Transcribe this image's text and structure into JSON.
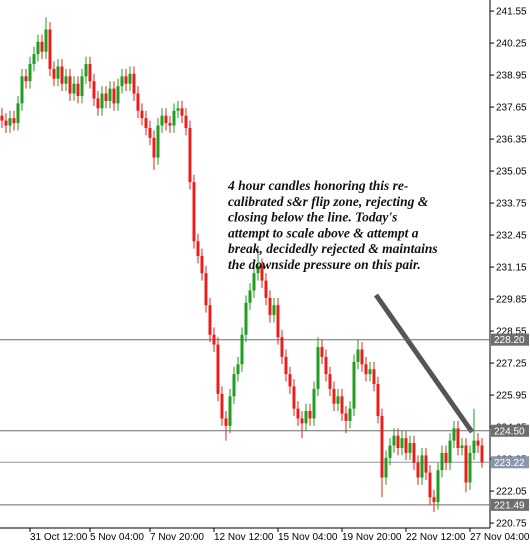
{
  "chart_data": {
    "type": "candlestick",
    "categories": [
      null,
      null,
      null,
      null,
      null,
      null,
      null,
      "31 Oct 12:00",
      null,
      null,
      null,
      null,
      null,
      null,
      null,
      null,
      null,
      null,
      null,
      null,
      null,
      null,
      "5 Nov 04:00",
      null,
      null,
      null,
      null,
      null,
      null,
      null,
      null,
      null,
      null,
      null,
      null,
      null,
      null,
      "7 Nov 20:00",
      null,
      null,
      null,
      null,
      null,
      null,
      null,
      null,
      null,
      null,
      null,
      null,
      null,
      null,
      null,
      "12 Nov 12:00",
      null,
      null,
      null,
      null,
      null,
      null,
      null,
      null,
      null,
      null,
      null,
      null,
      null,
      null,
      null,
      "15 Nov 04:00",
      null,
      null,
      null,
      null,
      null,
      null,
      null,
      null,
      null,
      null,
      null,
      null,
      null,
      null,
      null,
      "19 Nov 20:00",
      null,
      null,
      null,
      null,
      null,
      null,
      null,
      null,
      null,
      null,
      null,
      null,
      null,
      null,
      null,
      "22 Nov 12:00",
      null,
      null,
      null,
      null,
      null,
      null,
      null,
      null,
      null,
      null,
      null,
      null,
      null,
      null,
      null,
      "27 Nov 04:00",
      null,
      null,
      null
    ],
    "ohlc": [
      [
        237.3,
        237.6,
        236.8,
        237.1
      ],
      [
        237.1,
        237.4,
        236.6,
        236.9
      ],
      [
        236.9,
        237.5,
        236.6,
        237.2
      ],
      [
        237.2,
        237.5,
        236.7,
        237.0
      ],
      [
        237.0,
        238.1,
        236.7,
        237.8
      ],
      [
        237.8,
        239.2,
        237.5,
        238.9
      ],
      [
        238.9,
        239.2,
        238.4,
        238.7
      ],
      [
        238.7,
        239.7,
        238.4,
        239.4
      ],
      [
        239.4,
        240.1,
        239.1,
        239.8
      ],
      [
        239.8,
        240.6,
        239.5,
        240.3
      ],
      [
        240.3,
        240.6,
        239.6,
        239.9
      ],
      [
        239.9,
        241.3,
        239.6,
        240.8
      ],
      [
        240.8,
        241.1,
        238.9,
        239.2
      ],
      [
        239.2,
        239.5,
        238.5,
        238.8
      ],
      [
        238.8,
        239.6,
        238.5,
        239.3
      ],
      [
        239.3,
        239.6,
        238.3,
        238.6
      ],
      [
        238.6,
        239.2,
        238.3,
        238.9
      ],
      [
        238.9,
        239.2,
        237.9,
        238.2
      ],
      [
        238.2,
        238.9,
        237.9,
        238.6
      ],
      [
        238.6,
        238.9,
        237.8,
        238.1
      ],
      [
        238.1,
        239.2,
        237.8,
        238.9
      ],
      [
        238.9,
        239.7,
        238.6,
        239.4
      ],
      [
        239.4,
        239.7,
        238.4,
        238.7
      ],
      [
        238.7,
        239.0,
        237.7,
        238.0
      ],
      [
        238.0,
        238.3,
        237.3,
        237.6
      ],
      [
        237.6,
        238.5,
        237.3,
        238.2
      ],
      [
        238.2,
        238.5,
        237.6,
        237.9
      ],
      [
        237.9,
        238.7,
        237.6,
        238.4
      ],
      [
        238.4,
        238.7,
        237.5,
        237.8
      ],
      [
        237.8,
        238.8,
        237.5,
        238.5
      ],
      [
        238.5,
        239.2,
        238.2,
        238.9
      ],
      [
        238.9,
        239.2,
        238.3,
        238.6
      ],
      [
        238.6,
        239.3,
        238.3,
        239.0
      ],
      [
        239.0,
        239.3,
        237.9,
        238.2
      ],
      [
        238.2,
        238.5,
        237.2,
        237.5
      ],
      [
        237.5,
        237.8,
        236.9,
        237.2
      ],
      [
        237.2,
        237.5,
        236.5,
        236.8
      ],
      [
        236.8,
        237.1,
        236.1,
        236.4
      ],
      [
        236.4,
        236.7,
        235.1,
        235.6
      ],
      [
        235.6,
        237.2,
        235.3,
        236.9
      ],
      [
        236.9,
        237.6,
        236.6,
        237.3
      ],
      [
        237.3,
        237.6,
        236.7,
        237.0
      ],
      [
        237.0,
        237.3,
        236.6,
        236.9
      ],
      [
        236.9,
        237.8,
        236.6,
        237.5
      ],
      [
        237.5,
        237.9,
        237.2,
        237.6
      ],
      [
        237.6,
        237.9,
        237.0,
        237.3
      ],
      [
        237.3,
        237.6,
        236.5,
        236.8
      ],
      [
        236.8,
        237.1,
        234.3,
        234.6
      ],
      [
        234.6,
        234.9,
        231.9,
        232.2
      ],
      [
        232.2,
        232.5,
        231.3,
        231.6
      ],
      [
        231.6,
        231.9,
        230.6,
        230.9
      ],
      [
        230.9,
        231.2,
        229.3,
        229.6
      ],
      [
        229.6,
        229.9,
        228.1,
        228.4
      ],
      [
        228.4,
        228.7,
        227.7,
        228.0
      ],
      [
        228.0,
        228.3,
        225.7,
        226.0
      ],
      [
        226.0,
        226.3,
        224.7,
        225.0
      ],
      [
        225.0,
        225.3,
        224.1,
        224.7
      ],
      [
        224.7,
        226.2,
        224.4,
        225.9
      ],
      [
        225.9,
        227.1,
        225.6,
        226.8
      ],
      [
        226.8,
        227.5,
        226.5,
        227.2
      ],
      [
        227.2,
        228.7,
        226.9,
        228.4
      ],
      [
        228.4,
        230.0,
        228.1,
        229.7
      ],
      [
        229.7,
        230.5,
        229.4,
        230.2
      ],
      [
        230.2,
        231.2,
        229.9,
        230.9
      ],
      [
        230.9,
        231.9,
        230.6,
        231.2
      ],
      [
        231.2,
        231.5,
        230.3,
        230.6
      ],
      [
        230.6,
        230.9,
        229.6,
        229.9
      ],
      [
        229.9,
        230.2,
        228.9,
        229.2
      ],
      [
        229.2,
        229.9,
        228.9,
        229.6
      ],
      [
        229.6,
        229.9,
        228.0,
        228.3
      ],
      [
        228.3,
        228.6,
        227.2,
        227.5
      ],
      [
        227.5,
        227.8,
        226.5,
        226.8
      ],
      [
        226.8,
        227.1,
        226.0,
        226.3
      ],
      [
        226.3,
        226.6,
        225.1,
        225.4
      ],
      [
        225.4,
        225.7,
        224.7,
        225.0
      ],
      [
        225.0,
        225.3,
        224.2,
        224.8
      ],
      [
        224.8,
        225.6,
        224.5,
        225.3
      ],
      [
        225.3,
        225.6,
        224.7,
        225.0
      ],
      [
        225.0,
        226.5,
        224.7,
        226.2
      ],
      [
        226.2,
        228.3,
        225.9,
        227.9
      ],
      [
        227.9,
        228.2,
        227.2,
        227.5
      ],
      [
        227.5,
        227.8,
        226.5,
        226.8
      ],
      [
        226.8,
        227.1,
        225.9,
        226.2
      ],
      [
        226.2,
        226.5,
        225.3,
        225.6
      ],
      [
        225.6,
        226.2,
        225.3,
        225.9
      ],
      [
        225.9,
        226.2,
        224.9,
        225.2
      ],
      [
        225.2,
        225.5,
        224.4,
        224.9
      ],
      [
        224.9,
        225.7,
        224.6,
        225.4
      ],
      [
        225.4,
        227.6,
        225.1,
        227.3
      ],
      [
        227.3,
        228.2,
        227.0,
        227.8
      ],
      [
        227.8,
        228.1,
        226.9,
        227.2
      ],
      [
        227.2,
        227.5,
        226.5,
        226.8
      ],
      [
        226.8,
        227.3,
        226.5,
        227.0
      ],
      [
        227.0,
        227.3,
        226.1,
        226.4
      ],
      [
        226.4,
        226.7,
        224.8,
        225.1
      ],
      [
        225.1,
        225.4,
        221.8,
        222.6
      ],
      [
        222.6,
        223.7,
        222.3,
        223.4
      ],
      [
        223.4,
        224.2,
        223.1,
        223.9
      ],
      [
        223.9,
        224.6,
        223.6,
        224.3
      ],
      [
        224.3,
        224.6,
        223.5,
        223.8
      ],
      [
        223.8,
        224.5,
        223.5,
        224.2
      ],
      [
        224.2,
        224.5,
        223.3,
        223.6
      ],
      [
        223.6,
        224.3,
        223.3,
        224.0
      ],
      [
        224.0,
        224.3,
        222.9,
        223.2
      ],
      [
        223.2,
        223.5,
        222.3,
        222.6
      ],
      [
        222.6,
        223.8,
        222.3,
        223.5
      ],
      [
        223.5,
        223.8,
        222.5,
        222.8
      ],
      [
        222.8,
        223.1,
        221.5,
        221.8
      ],
      [
        221.8,
        222.1,
        221.2,
        221.6
      ],
      [
        221.6,
        223.2,
        221.3,
        222.9
      ],
      [
        222.9,
        223.9,
        222.6,
        223.6
      ],
      [
        223.6,
        223.9,
        222.9,
        223.2
      ],
      [
        223.2,
        224.4,
        222.9,
        224.1
      ],
      [
        224.1,
        224.9,
        223.8,
        224.6
      ],
      [
        224.6,
        224.9,
        223.5,
        223.8
      ],
      [
        223.8,
        224.2,
        223.5,
        223.9
      ],
      [
        223.9,
        224.2,
        222.0,
        222.4
      ],
      [
        222.4,
        223.9,
        222.1,
        223.6
      ],
      [
        223.6,
        225.4,
        223.3,
        224.1
      ],
      [
        224.1,
        224.4,
        223.6,
        223.9
      ],
      [
        223.9,
        224.2,
        223.0,
        223.22
      ]
    ],
    "up_color": "#1f9e1f",
    "down_color": "#e3201b",
    "ylim": [
      220.55,
      242.0
    ],
    "yticks": [
      241.55,
      240.25,
      238.95,
      237.65,
      236.35,
      235.05,
      233.75,
      232.45,
      231.15,
      229.85,
      228.55,
      227.25,
      225.95,
      224.65,
      223.35,
      222.05,
      220.75
    ],
    "levels": [
      {
        "value": 228.2,
        "label": "228.20"
      },
      {
        "value": 224.5,
        "label": "224.50"
      },
      221.49
    ],
    "level_color": "#6e6e6e",
    "current_price": 223.22,
    "current_color": "#8a96ad",
    "annotation": [
      "4 hour candles honoring this re-",
      "calibrated s&r flip zone, rejecting &",
      "closing below the line. Today's",
      "attempt to scale above & attempt a",
      "break, decidedly rejected & maintains",
      "the downside pressure on this pair."
    ]
  }
}
